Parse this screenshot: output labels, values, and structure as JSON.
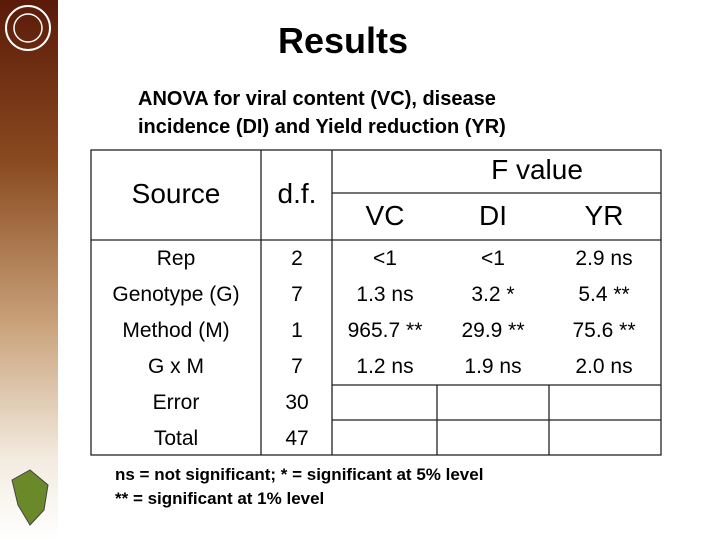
{
  "title": "Results",
  "subtitle": [
    "ANOVA for viral content (VC), disease",
    "incidence (DI) and Yield reduction (YR)"
  ],
  "table": {
    "header": {
      "source": "Source",
      "df": "d.f.",
      "group": "F value",
      "columns": [
        "VC",
        "DI",
        "YR"
      ]
    },
    "rows": [
      [
        "Rep",
        "2",
        "<1",
        "<1",
        "2.9 ns"
      ],
      [
        "Genotype (G)",
        "7",
        "1.3 ns",
        "3.2 *",
        "5.4 **"
      ],
      [
        "Method (M)",
        "1",
        "965.7 **",
        "29.9 **",
        "75.6 **"
      ],
      [
        "G x M",
        "7",
        "1.2 ns",
        "1.9 ns",
        "2.0 ns"
      ],
      [
        "Error",
        "30"
      ],
      [
        "Total",
        "47"
      ]
    ]
  },
  "footnote": [
    "ns = not significant;  * = significant at 5% level",
    "** = significant at 1% level"
  ]
}
